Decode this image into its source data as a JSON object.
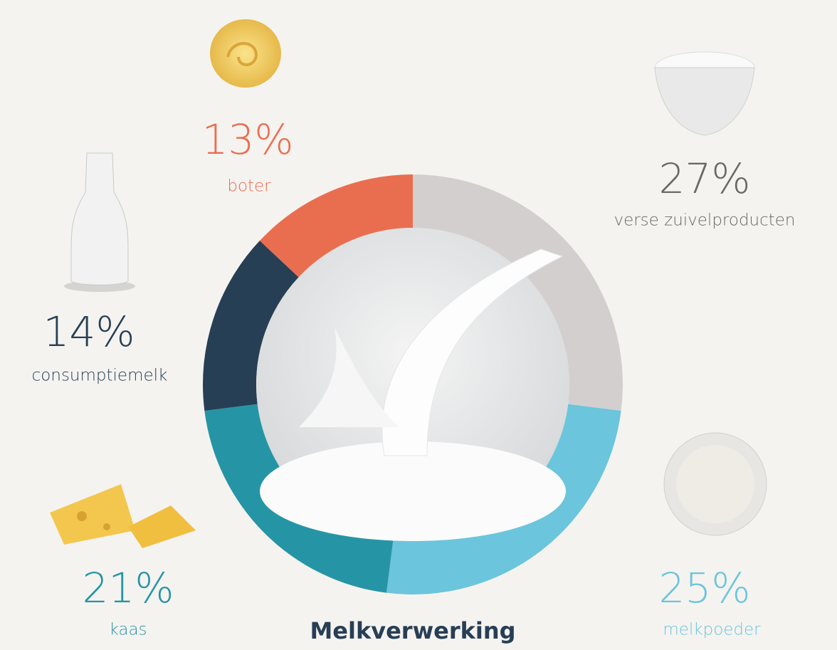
{
  "chart_data": {
    "type": "donut",
    "title": "Melkverwerking",
    "categories": [
      "verse zuivelproducten",
      "melkpoeder",
      "kaas",
      "consumptiemelk",
      "boter"
    ],
    "values": [
      27,
      25,
      21,
      14,
      13
    ],
    "value_labels": [
      "27%",
      "25%",
      "21%",
      "14%",
      "13%"
    ],
    "colors": [
      "#d3cfcf",
      "#6bc5dc",
      "#2595a6",
      "#273f55",
      "#e96e50"
    ],
    "label_colors": [
      "#6b6868",
      "#6bc5dc",
      "#2595a6",
      "#273f55",
      "#e96e50"
    ]
  }
}
